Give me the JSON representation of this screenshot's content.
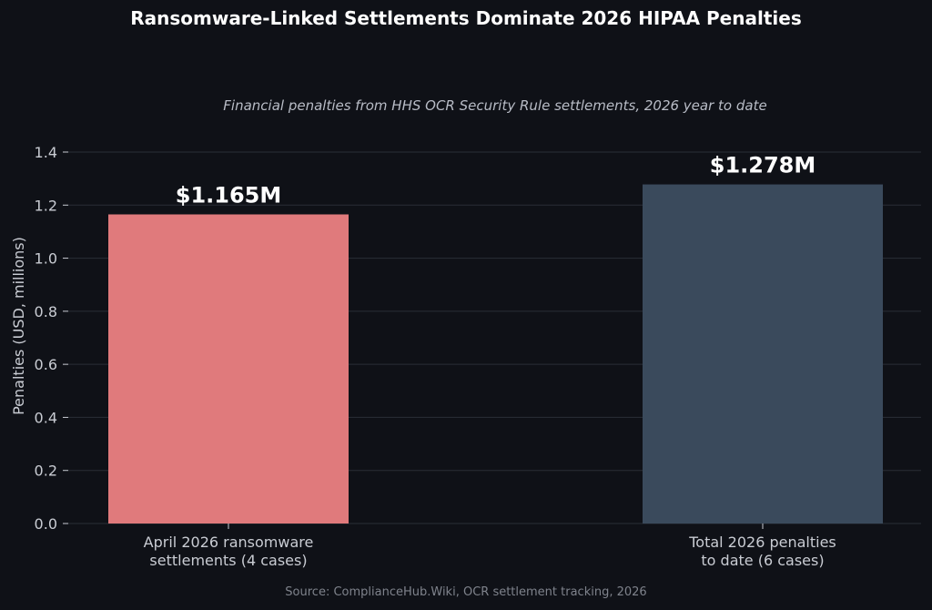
{
  "chart_data": {
    "type": "bar",
    "title": "Ransomware-Linked Settlements Dominate 2026 HIPAA Penalties",
    "subtitle": "Financial penalties from HHS OCR Security Rule settlements, 2026 year to date",
    "ylabel": "Penalties (USD, millions)",
    "xlabel": "",
    "categories": [
      [
        "April 2026 ransomware",
        "settlements (4 cases)"
      ],
      [
        "Total 2026 penalties",
        "to date (6 cases)"
      ]
    ],
    "values": [
      1.165,
      1.278
    ],
    "data_labels": [
      "$1.165M",
      "$1.278M"
    ],
    "bar_colors": [
      "#e07a7c",
      "#3a4a5c"
    ],
    "ylim": [
      0,
      1.4
    ],
    "yticks": [
      "0.0",
      "0.2",
      "0.4",
      "0.6",
      "0.8",
      "1.0",
      "1.2",
      "1.4"
    ],
    "grid": true,
    "legend": "none",
    "source": "Source: ComplianceHub.Wiki, OCR settlement tracking, 2026"
  },
  "colors": {
    "background": "#0f1117",
    "grid": "#2a2e37",
    "axis": "#c9ccd3"
  }
}
